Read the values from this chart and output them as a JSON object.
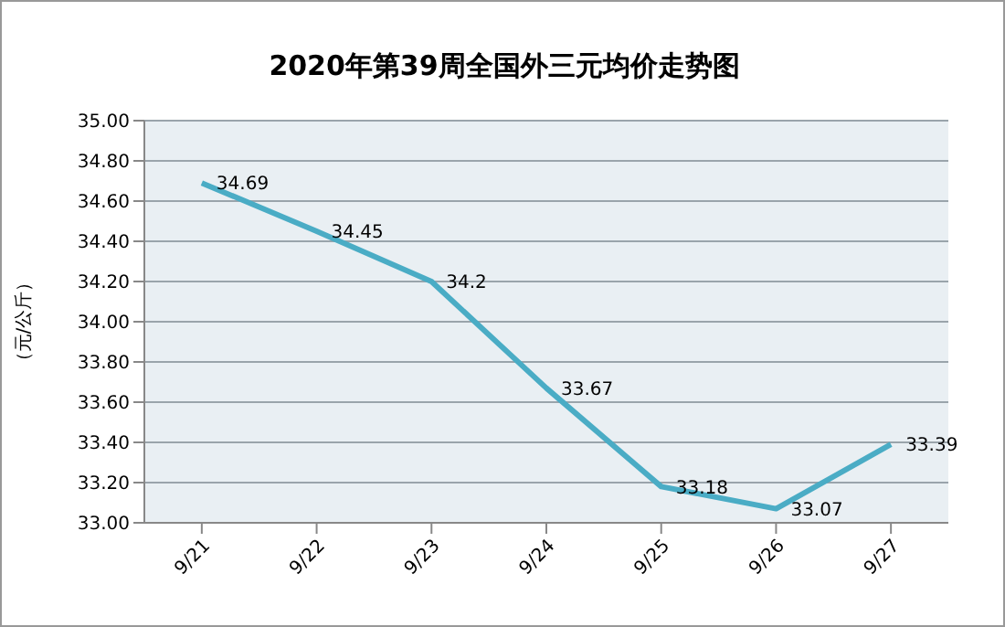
{
  "chart_data": {
    "type": "line",
    "title": "2020年第39周全国外三元均价走势图",
    "ylabel": "（元/公斤）",
    "categories": [
      "9/21",
      "9/22",
      "9/23",
      "9/24",
      "9/25",
      "9/26",
      "9/27"
    ],
    "series": [
      {
        "color": "#4aacc5",
        "values": [
          34.69,
          34.45,
          34.2,
          33.67,
          33.18,
          33.07,
          33.39
        ]
      }
    ],
    "ylim": [
      33,
      35
    ],
    "yticks": [
      {
        "value": 33,
        "label": "33.00"
      },
      {
        "value": 33.2,
        "label": "33.20"
      },
      {
        "value": 33.4,
        "label": "33.40"
      },
      {
        "value": 33.6,
        "label": "33.60"
      },
      {
        "value": 33.8,
        "label": "33.80"
      },
      {
        "value": 34,
        "label": "34.00"
      },
      {
        "value": 34.2,
        "label": "34.20"
      },
      {
        "value": 34.4,
        "label": "34.40"
      },
      {
        "value": 34.6,
        "label": "34.60"
      },
      {
        "value": 34.8,
        "label": "34.80"
      },
      {
        "value": 35,
        "label": "35.00"
      }
    ],
    "grid": "y",
    "data_labels": true,
    "marker": "none",
    "line_style": "solid",
    "legend": false
  }
}
